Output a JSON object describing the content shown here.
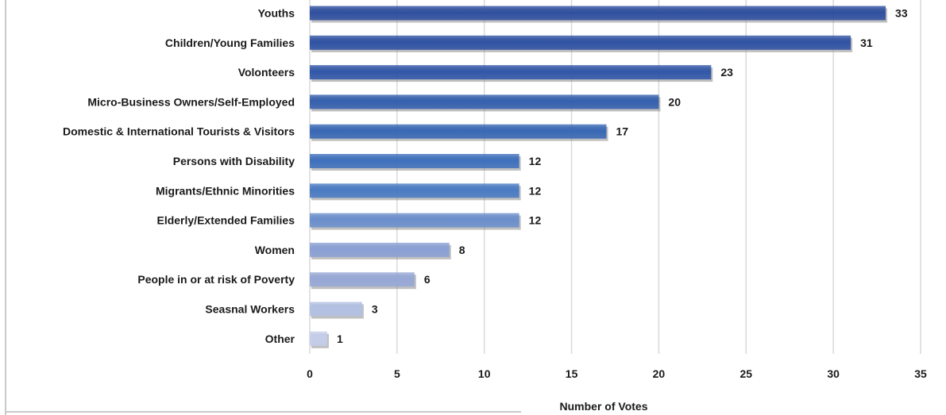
{
  "chart_data": {
    "type": "bar",
    "orientation": "horizontal",
    "categories": [
      "Youths",
      "Children/Young Families",
      "Volonteers",
      "Micro-Business Owners/Self-Employed",
      "Domestic & International Tourists & Visitors",
      "Persons with Disability",
      "Migrants/Ethnic Minorities",
      "Elderly/Extended Families",
      "Women",
      "People in or at risk of Poverty",
      "Seasnal Workers",
      "Other"
    ],
    "values": [
      33,
      31,
      23,
      20,
      17,
      12,
      12,
      12,
      8,
      6,
      3,
      1
    ],
    "bar_colors": [
      "#2f4f9f",
      "#2f52a3",
      "#3157a8",
      "#3560ae",
      "#3968b5",
      "#3f70bd",
      "#4a7bc3",
      "#6b8fcc",
      "#8aa0d4",
      "#97a8d6",
      "#b3c0e3",
      "#c4cdea"
    ],
    "title": "",
    "xlabel": "Number of Votes",
    "ylabel": "",
    "xlim": [
      0,
      35
    ],
    "xticks": [
      0,
      5,
      10,
      15,
      20,
      25,
      30,
      35
    ],
    "grid": true,
    "data_labels": true
  }
}
